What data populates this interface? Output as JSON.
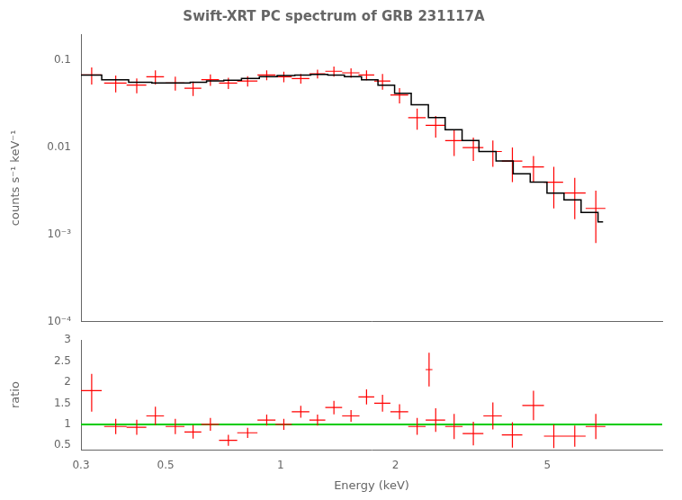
{
  "chart_data": [
    {
      "type": "scatter",
      "title": "Swift-XRT PC spectrum of GRB 231117A",
      "ylabel": "counts s⁻¹ keV⁻¹",
      "log": true,
      "grid": false,
      "tick_labels": "y",
      "xlim": [
        0.3,
        10.0
      ],
      "xticks": [
        0.3,
        0.5,
        1,
        2,
        5
      ],
      "ylim": [
        0.0001,
        0.2
      ],
      "yticks": [
        {
          "value": 0.0001,
          "label": "10⁻⁴"
        },
        {
          "value": 0.001,
          "label": "10⁻³"
        },
        0.01,
        0.1
      ],
      "series": [
        {
          "type": "errorbar",
          "color": "#ff0000",
          "x": [
            0.32,
            0.37,
            0.42,
            0.47,
            0.53,
            0.59,
            0.655,
            0.73,
            0.82,
            0.92,
            1.02,
            1.13,
            1.25,
            1.38,
            1.53,
            1.68,
            1.85,
            2.05,
            2.28,
            2.55,
            2.85,
            3.2,
            3.6,
            4.05,
            4.6,
            5.2,
            5.9,
            6.7
          ],
          "values": [
            0.068,
            0.055,
            0.052,
            0.065,
            0.055,
            0.048,
            0.06,
            0.055,
            0.058,
            0.068,
            0.065,
            0.062,
            0.07,
            0.075,
            0.072,
            0.068,
            0.058,
            0.04,
            0.022,
            0.018,
            0.012,
            0.01,
            0.009,
            0.007,
            0.006,
            0.004,
            0.003,
            0.002
          ],
          "xerr": [
            0.02,
            0.025,
            0.025,
            0.025,
            0.03,
            0.03,
            0.035,
            0.04,
            0.05,
            0.05,
            0.05,
            0.06,
            0.06,
            0.07,
            0.08,
            0.08,
            0.09,
            0.11,
            0.12,
            0.15,
            0.15,
            0.2,
            0.2,
            0.25,
            0.3,
            0.3,
            0.4,
            0.4
          ],
          "yerr_lo": [
            0.015,
            0.012,
            0.01,
            0.012,
            0.01,
            0.009,
            0.009,
            0.008,
            0.008,
            0.009,
            0.009,
            0.008,
            0.008,
            0.01,
            0.009,
            0.009,
            0.012,
            0.008,
            0.006,
            0.005,
            0.004,
            0.003,
            0.003,
            0.003,
            0.002,
            0.002,
            0.0015,
            0.0012
          ],
          "yerr_hi": [
            0.015,
            0.012,
            0.01,
            0.012,
            0.01,
            0.009,
            0.009,
            0.008,
            0.008,
            0.009,
            0.009,
            0.008,
            0.008,
            0.01,
            0.009,
            0.009,
            0.012,
            0.008,
            0.006,
            0.005,
            0.004,
            0.003,
            0.003,
            0.003,
            0.002,
            0.002,
            0.0015,
            0.0012
          ]
        },
        {
          "type": "line",
          "color": "#000000",
          "x": [
            0.3,
            0.34,
            0.34,
            0.4,
            0.4,
            0.46,
            0.46,
            0.52,
            0.52,
            0.58,
            0.58,
            0.64,
            0.64,
            0.71,
            0.71,
            0.79,
            0.79,
            0.88,
            0.88,
            0.98,
            0.98,
            1.09,
            1.09,
            1.2,
            1.2,
            1.33,
            1.33,
            1.47,
            1.47,
            1.63,
            1.63,
            1.8,
            1.8,
            1.99,
            1.99,
            2.2,
            2.2,
            2.44,
            2.44,
            2.7,
            2.7,
            2.99,
            2.99,
            3.31,
            3.31,
            3.67,
            3.67,
            4.07,
            4.07,
            4.51,
            4.51,
            4.99,
            4.99,
            5.53,
            5.53,
            6.13,
            6.13,
            6.79,
            6.79,
            7.0
          ],
          "values": [
            0.068,
            0.068,
            0.06,
            0.06,
            0.056,
            0.056,
            0.055,
            0.055,
            0.055,
            0.055,
            0.056,
            0.056,
            0.058,
            0.058,
            0.059,
            0.059,
            0.062,
            0.062,
            0.065,
            0.065,
            0.067,
            0.067,
            0.068,
            0.068,
            0.069,
            0.069,
            0.068,
            0.068,
            0.065,
            0.065,
            0.06,
            0.06,
            0.052,
            0.052,
            0.042,
            0.042,
            0.031,
            0.031,
            0.022,
            0.022,
            0.016,
            0.016,
            0.012,
            0.012,
            0.009,
            0.009,
            0.007,
            0.007,
            0.005,
            0.005,
            0.004,
            0.004,
            0.003,
            0.003,
            0.0025,
            0.0025,
            0.0018,
            0.0018,
            0.0014,
            0.0014
          ]
        }
      ]
    },
    {
      "type": "scatter",
      "xlabel": "Energy (keV)",
      "ylabel": "ratio",
      "log": "x",
      "grid": false,
      "xlim": [
        0.3,
        10.0
      ],
      "xticks": [
        0.3,
        0.5,
        1,
        2,
        5
      ],
      "ylim": [
        0.4,
        3.0
      ],
      "yticks": [
        0.5,
        1,
        1.5,
        2,
        2.5,
        3
      ],
      "series": [
        {
          "type": "errorbar",
          "color": "#ff0000",
          "x": [
            0.32,
            0.37,
            0.42,
            0.47,
            0.53,
            0.59,
            0.655,
            0.73,
            0.82,
            0.92,
            1.02,
            1.13,
            1.25,
            1.38,
            1.53,
            1.68,
            1.85,
            2.05,
            2.28,
            2.45,
            2.55,
            2.85,
            3.2,
            3.6,
            4.05,
            4.6,
            5.2,
            5.9,
            6.7
          ],
          "values": [
            1.8,
            0.95,
            0.93,
            1.2,
            0.95,
            0.82,
            1.0,
            0.62,
            0.8,
            1.1,
            1.0,
            1.3,
            1.1,
            1.4,
            1.2,
            1.65,
            1.5,
            1.3,
            0.95,
            2.3,
            1.1,
            0.95,
            0.78,
            1.2,
            0.75,
            1.45,
            0.72,
            0.72,
            0.95
          ],
          "xerr": [
            0.02,
            0.025,
            0.025,
            0.025,
            0.03,
            0.03,
            0.035,
            0.04,
            0.05,
            0.05,
            0.05,
            0.06,
            0.06,
            0.07,
            0.08,
            0.08,
            0.09,
            0.11,
            0.12,
            0.05,
            0.15,
            0.15,
            0.2,
            0.2,
            0.25,
            0.3,
            0.3,
            0.4,
            0.4
          ],
          "yerr_lo": [
            0.5,
            0.18,
            0.18,
            0.22,
            0.18,
            0.16,
            0.15,
            0.13,
            0.12,
            0.13,
            0.13,
            0.14,
            0.13,
            0.16,
            0.14,
            0.18,
            0.2,
            0.18,
            0.2,
            0.4,
            0.28,
            0.3,
            0.28,
            0.32,
            0.3,
            0.35,
            0.28,
            0.25,
            0.3
          ],
          "yerr_hi": [
            0.4,
            0.18,
            0.18,
            0.22,
            0.18,
            0.16,
            0.15,
            0.13,
            0.12,
            0.13,
            0.13,
            0.14,
            0.13,
            0.16,
            0.14,
            0.18,
            0.2,
            0.18,
            0.2,
            0.4,
            0.28,
            0.3,
            0.28,
            0.32,
            0.3,
            0.35,
            0.28,
            0.25,
            0.3
          ]
        },
        {
          "type": "hline",
          "color": "#00cc00",
          "values": [
            1.0
          ]
        }
      ]
    }
  ]
}
